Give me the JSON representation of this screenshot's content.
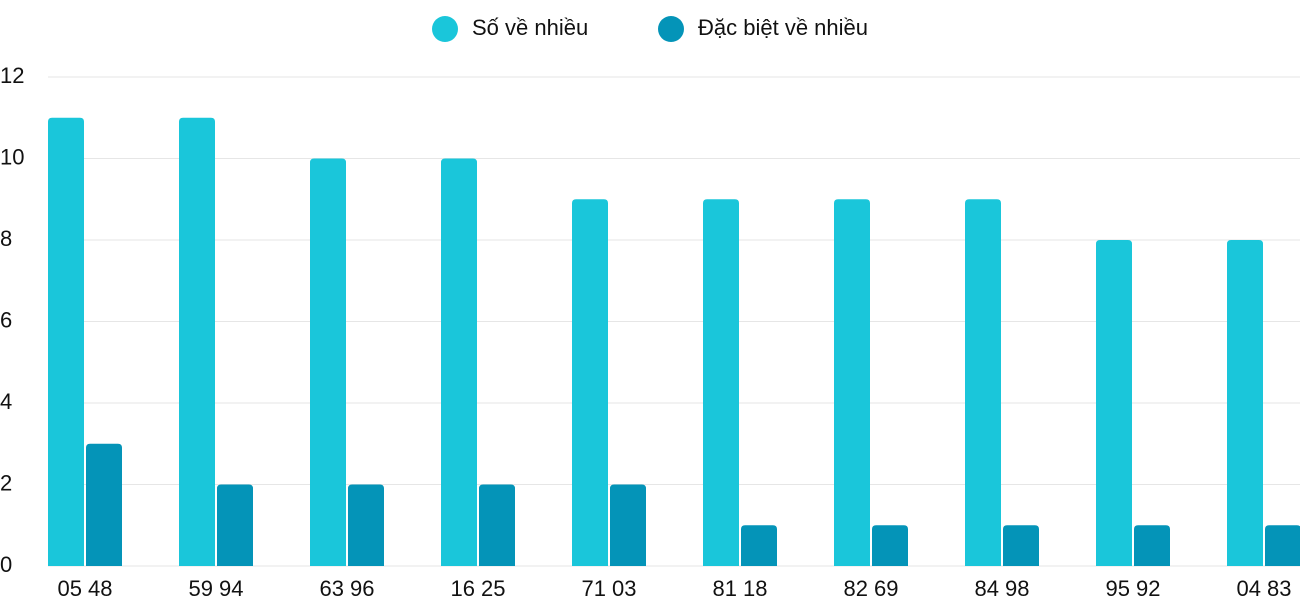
{
  "chart_data": {
    "type": "bar",
    "categories": [
      "05 48",
      "59 94",
      "63 96",
      "16 25",
      "71 03",
      "81 18",
      "82 69",
      "84 98",
      "95 92",
      "04 83"
    ],
    "series": [
      {
        "name": "Số về nhiều",
        "color": "#1ac6da",
        "values": [
          11,
          11,
          10,
          10,
          9,
          9,
          9,
          9,
          8,
          8
        ]
      },
      {
        "name": "Đặc biệt về nhiều",
        "color": "#0494b8",
        "values": [
          3,
          2,
          2,
          2,
          2,
          1,
          1,
          1,
          1,
          1
        ]
      }
    ],
    "ylim": [
      0,
      12
    ],
    "yticks": [
      0,
      2,
      4,
      6,
      8,
      10,
      12
    ],
    "grid": true,
    "legend": "top"
  }
}
